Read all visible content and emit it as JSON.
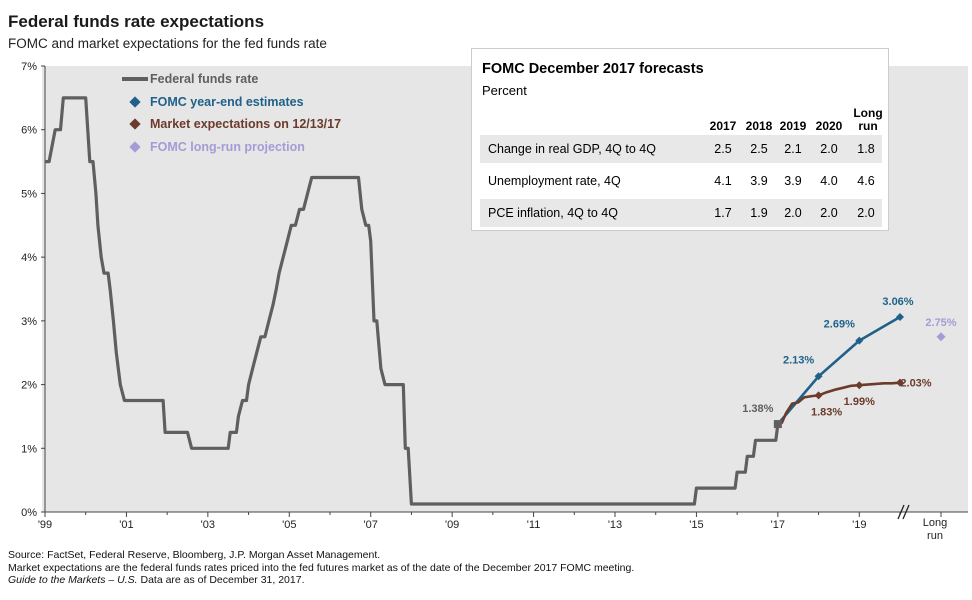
{
  "title": "Federal funds rate expectations",
  "subtitle": "FOMC and market expectations for the fed funds rate",
  "colors": {
    "fed_funds": "#5f5f5f",
    "fomc": "#1f6189",
    "market": "#6b3b2b",
    "longrun": "#a69bd6",
    "panel": "#e6e6e6"
  },
  "legend": [
    {
      "label": "Federal funds rate",
      "color": "#5f5f5f",
      "symbol": "line"
    },
    {
      "label": "FOMC year-end estimates",
      "color": "#1f6189",
      "symbol": "diamond"
    },
    {
      "label": "Market expectations on 12/13/17",
      "color": "#6b3b2b",
      "symbol": "diamond"
    },
    {
      "label": "FOMC long-run projection",
      "color": "#a69bd6",
      "symbol": "diamond"
    }
  ],
  "chart_data": {
    "type": "line",
    "title": "Federal funds rate expectations",
    "subtitle": "FOMC and market expectations for the fed funds rate",
    "xlabel": "",
    "ylabel": "",
    "ylim": [
      0,
      7
    ],
    "xlim": [
      1999,
      2020.9
    ],
    "grid": false,
    "legend_position": "top-left",
    "y_ticks": [
      "0%",
      "1%",
      "2%",
      "3%",
      "4%",
      "5%",
      "6%",
      "7%"
    ],
    "x_ticks": [
      {
        "x": 1999,
        "label": "'99"
      },
      {
        "x": 2001,
        "label": "'01"
      },
      {
        "x": 2003,
        "label": "'03"
      },
      {
        "x": 2005,
        "label": "'05"
      },
      {
        "x": 2007,
        "label": "'07"
      },
      {
        "x": 2009,
        "label": "'09"
      },
      {
        "x": 2011,
        "label": "'11"
      },
      {
        "x": 2013,
        "label": "'13"
      },
      {
        "x": 2015,
        "label": "'15"
      },
      {
        "x": 2017,
        "label": "'17"
      },
      {
        "x": 2019,
        "label": "'19"
      }
    ],
    "long_run_label": [
      "Long",
      "run"
    ],
    "series": [
      {
        "name": "Federal funds rate",
        "kind": "step",
        "points": [
          [
            1999.0,
            5.5
          ],
          [
            1999.1,
            5.5
          ],
          [
            1999.25,
            6.0
          ],
          [
            1999.38,
            6.0
          ],
          [
            1999.45,
            6.5
          ],
          [
            2000.0,
            6.5
          ],
          [
            2000.1,
            5.5
          ],
          [
            2000.18,
            5.5
          ],
          [
            2000.25,
            5.0
          ],
          [
            2000.3,
            4.5
          ],
          [
            2000.38,
            4.0
          ],
          [
            2000.45,
            3.75
          ],
          [
            2000.55,
            3.75
          ],
          [
            2000.6,
            3.5
          ],
          [
            2000.68,
            3.0
          ],
          [
            2000.75,
            2.5
          ],
          [
            2000.85,
            2.0
          ],
          [
            2000.95,
            1.75
          ],
          [
            2001.9,
            1.75
          ],
          [
            2001.95,
            1.25
          ],
          [
            2002.5,
            1.25
          ],
          [
            2002.6,
            1.0
          ],
          [
            2003.5,
            1.0
          ],
          [
            2003.55,
            1.25
          ],
          [
            2003.7,
            1.25
          ],
          [
            2003.75,
            1.5
          ],
          [
            2003.85,
            1.75
          ],
          [
            2003.95,
            1.75
          ],
          [
            2004.0,
            2.0
          ],
          [
            2004.1,
            2.25
          ],
          [
            2004.2,
            2.5
          ],
          [
            2004.3,
            2.75
          ],
          [
            2004.4,
            2.75
          ],
          [
            2004.5,
            3.0
          ],
          [
            2004.6,
            3.25
          ],
          [
            2004.68,
            3.5
          ],
          [
            2004.75,
            3.75
          ],
          [
            2004.85,
            4.0
          ],
          [
            2004.95,
            4.25
          ],
          [
            2005.05,
            4.5
          ],
          [
            2005.15,
            4.5
          ],
          [
            2005.25,
            4.75
          ],
          [
            2005.35,
            4.75
          ],
          [
            2005.45,
            5.0
          ],
          [
            2005.55,
            5.25
          ],
          [
            2006.7,
            5.25
          ],
          [
            2006.78,
            4.75
          ],
          [
            2006.88,
            4.5
          ],
          [
            2006.95,
            4.5
          ],
          [
            2007.0,
            4.25
          ],
          [
            2007.08,
            3.0
          ],
          [
            2007.15,
            3.0
          ],
          [
            2007.25,
            2.25
          ],
          [
            2007.35,
            2.0
          ],
          [
            2007.8,
            2.0
          ],
          [
            2007.85,
            1.0
          ],
          [
            2007.92,
            1.0
          ],
          [
            2008.0,
            0.125
          ],
          [
            2014.95,
            0.125
          ],
          [
            2015.0,
            0.375
          ],
          [
            2015.95,
            0.375
          ],
          [
            2016.0,
            0.625
          ],
          [
            2016.2,
            0.625
          ],
          [
            2016.25,
            0.875
          ],
          [
            2016.4,
            0.875
          ],
          [
            2016.45,
            1.125
          ],
          [
            2016.95,
            1.125
          ],
          [
            2017.0,
            1.38
          ]
        ]
      },
      {
        "name": "FOMC year-end estimates",
        "kind": "line",
        "points": [
          [
            2017.0,
            1.38
          ],
          [
            2018.0,
            2.13
          ],
          [
            2019.0,
            2.69
          ],
          [
            2020.0,
            3.06
          ]
        ],
        "markers": [
          [
            2018.0,
            2.13
          ],
          [
            2019.0,
            2.69
          ],
          [
            2020.0,
            3.06
          ]
        ]
      },
      {
        "name": "Market expectations on 12/13/17",
        "kind": "line",
        "points": [
          [
            2017.0,
            1.38
          ],
          [
            2017.1,
            1.4
          ],
          [
            2017.2,
            1.55
          ],
          [
            2017.35,
            1.7
          ],
          [
            2017.5,
            1.72
          ],
          [
            2017.65,
            1.8
          ],
          [
            2017.85,
            1.82
          ],
          [
            2018.0,
            1.83
          ],
          [
            2018.2,
            1.88
          ],
          [
            2018.4,
            1.92
          ],
          [
            2018.6,
            1.95
          ],
          [
            2018.8,
            1.98
          ],
          [
            2019.0,
            1.99
          ],
          [
            2019.2,
            2.0
          ],
          [
            2019.4,
            2.01
          ],
          [
            2019.6,
            2.02
          ],
          [
            2019.8,
            2.02
          ],
          [
            2020.0,
            2.03
          ]
        ],
        "markers": [
          [
            2018.0,
            1.83
          ],
          [
            2019.0,
            1.99
          ],
          [
            2020.0,
            2.03
          ]
        ]
      },
      {
        "name": "FOMC long-run projection",
        "kind": "point",
        "points": [
          [
            "long-run",
            2.75
          ]
        ]
      }
    ],
    "annotations": [
      {
        "text": "1.38%",
        "x": 2017.0,
        "y": 1.38,
        "series": "Federal funds rate"
      },
      {
        "text": "2.13%",
        "x": 2018.0,
        "y": 2.13,
        "series": "FOMC year-end estimates"
      },
      {
        "text": "2.69%",
        "x": 2019.0,
        "y": 2.69,
        "series": "FOMC year-end estimates"
      },
      {
        "text": "3.06%",
        "x": 2020.0,
        "y": 3.06,
        "series": "FOMC year-end estimates"
      },
      {
        "text": "1.83%",
        "x": 2018.0,
        "y": 1.83,
        "series": "Market expectations on 12/13/17"
      },
      {
        "text": "1.99%",
        "x": 2019.0,
        "y": 1.99,
        "series": "Market expectations on 12/13/17"
      },
      {
        "text": "2.03%",
        "x": 2020.0,
        "y": 2.03,
        "series": "Market expectations on 12/13/17"
      },
      {
        "text": "2.75%",
        "x": "long-run",
        "y": 2.75,
        "series": "FOMC long-run projection"
      }
    ]
  },
  "table": {
    "title": "FOMC December 2017 forecasts",
    "unit": "Percent",
    "headers": [
      "2017",
      "2018",
      "2019",
      "2020",
      "Long run"
    ],
    "rows": [
      {
        "label": "Change in real GDP, 4Q to 4Q",
        "values": [
          "2.5",
          "2.5",
          "2.1",
          "2.0",
          "1.8"
        ]
      },
      {
        "label": "Unemployment rate, 4Q",
        "values": [
          "4.1",
          "3.9",
          "3.9",
          "4.0",
          "4.6"
        ]
      },
      {
        "label": "PCE inflation, 4Q to 4Q",
        "values": [
          "1.7",
          "1.9",
          "2.0",
          "2.0",
          "2.0"
        ]
      }
    ]
  },
  "footnotes": {
    "line1": "Source: FactSet, Federal Reserve, Bloomberg, J.P. Morgan Asset Management.",
    "line2": "Market expectations are the federal funds rates priced into the fed futures market as of the date of the December 2017 FOMC meeting.",
    "line3_italic": "Guide to the Markets – U.S.",
    "line3_rest": " Data are as of December 31, 2017."
  }
}
